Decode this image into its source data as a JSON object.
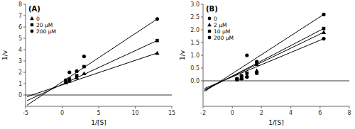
{
  "chart_data": [
    {
      "type": "scatter",
      "title": "(A)",
      "xlabel": "1/[S]",
      "ylabel": "1/v",
      "xlim": [
        -5,
        15
      ],
      "ylim": [
        -1,
        8
      ],
      "xticks": [
        -5,
        0,
        5,
        10,
        15
      ],
      "yticks": [
        0,
        1,
        2,
        3,
        4,
        5,
        6,
        7,
        8
      ],
      "color": "#000000",
      "legend": "upper left",
      "grid": false,
      "series": [
        {
          "name": "0",
          "marker": "triangle",
          "x": [
            0.5,
            1.0,
            2.0,
            3.0,
            13.0
          ],
          "values": [
            1.1,
            1.25,
            1.55,
            1.9,
            3.7
          ],
          "fit": {
            "x": [
              -4.8,
              13.0
            ],
            "y": [
              -0.15,
              3.7
            ]
          }
        },
        {
          "name": "20 μM",
          "marker": "square",
          "x": [
            0.5,
            1.0,
            2.0,
            3.0,
            13.0
          ],
          "values": [
            1.2,
            1.4,
            1.7,
            2.5,
            4.8
          ],
          "fit": {
            "x": [
              -4.8,
              13.0
            ],
            "y": [
              -0.5,
              4.8
            ]
          }
        },
        {
          "name": "200 μM",
          "marker": "circle",
          "x": [
            0.5,
            1.0,
            2.0,
            3.0,
            13.0
          ],
          "values": [
            1.3,
            2.0,
            2.1,
            3.4,
            6.7
          ],
          "fit": {
            "x": [
              -4.8,
              13.0
            ],
            "y": [
              -0.9,
              6.7
            ]
          }
        }
      ]
    },
    {
      "type": "scatter",
      "title": "(B)",
      "xlabel": "1/[S]",
      "ylabel": "1/v",
      "xlim": [
        -2,
        8
      ],
      "ylim": [
        -1,
        3
      ],
      "xticks": [
        -2,
        0,
        2,
        4,
        6,
        8
      ],
      "yticks": [
        {
          "value": 0,
          "label": "0.0"
        },
        0.5,
        {
          "value": 1.0,
          "label": "1.0"
        },
        1.5,
        {
          "value": 2.0,
          "label": "2.0"
        },
        2.5,
        {
          "value": 3.0,
          "label": "3.0"
        }
      ],
      "color": "#000000",
      "legend": "upper left",
      "grid": false,
      "series": [
        {
          "name": "0",
          "marker": "circle",
          "x": [
            0.32,
            0.63,
            1.0,
            1.67,
            6.25
          ],
          "values": [
            0.05,
            0.08,
            0.15,
            0.3,
            1.65
          ],
          "fit": {
            "x": [
              -1.9,
              6.25
            ],
            "y": [
              -0.3,
              1.65
            ]
          }
        },
        {
          "name": "2 μM",
          "marker": "triangle",
          "x": [
            0.32,
            0.63,
            1.0,
            1.67,
            6.25
          ],
          "values": [
            0.06,
            0.1,
            0.2,
            0.4,
            1.9
          ],
          "fit": {
            "x": [
              -1.9,
              6.25
            ],
            "y": [
              -0.35,
              1.9
            ]
          }
        },
        {
          "name": "10 μM",
          "marker": "square",
          "x": [
            0.32,
            0.63,
            1.0,
            1.67,
            6.25
          ],
          "values": [
            0.07,
            0.15,
            0.3,
            0.65,
            2.05
          ],
          "fit": {
            "x": [
              -1.9,
              6.25
            ],
            "y": [
              -0.38,
              2.05
            ]
          }
        },
        {
          "name": "200 μM",
          "marker": "circle",
          "x": [
            0.32,
            0.63,
            1.0,
            1.67,
            6.25
          ],
          "values": [
            0.08,
            0.2,
            1.0,
            0.75,
            2.6
          ],
          "fit": {
            "x": [
              -1.9,
              6.25
            ],
            "y": [
              -0.42,
              2.6
            ]
          }
        }
      ]
    }
  ]
}
